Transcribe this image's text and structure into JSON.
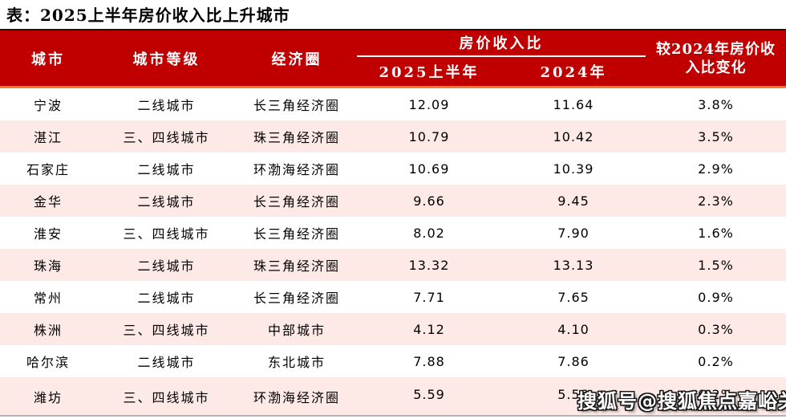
{
  "page": {
    "title": "表：2025上半年房价收入比上升城市",
    "watermark": "搜狐号@搜狐焦点嘉峪关站"
  },
  "colors": {
    "header_bg": "#C00000",
    "header_text": "#FFFFFF",
    "divider_orange": "#ED7D31",
    "top_border_black": "#151515",
    "row_alt_pink": "#FDEAE7",
    "body_text": "#000000"
  },
  "table": {
    "headers": {
      "city": "城市",
      "tier": "城市等级",
      "circle": "经济圈",
      "ratio_group": "房价收入比",
      "ratio_2025h1": "2025上半年",
      "ratio_2024": "2024年",
      "change": "较2024年房价收入比变化"
    },
    "rows": [
      {
        "city": "宁波",
        "tier": "二线城市",
        "circle": "长三角经济圈",
        "h1_2025": "12.09",
        "y2024": "11.64",
        "change": "3.8%"
      },
      {
        "city": "湛江",
        "tier": "三、四线城市",
        "circle": "珠三角经济圈",
        "h1_2025": "10.79",
        "y2024": "10.42",
        "change": "3.5%"
      },
      {
        "city": "石家庄",
        "tier": "二线城市",
        "circle": "环渤海经济圈",
        "h1_2025": "10.69",
        "y2024": "10.39",
        "change": "2.9%"
      },
      {
        "city": "金华",
        "tier": "二线城市",
        "circle": "长三角经济圈",
        "h1_2025": "9.66",
        "y2024": "9.45",
        "change": "2.3%"
      },
      {
        "city": "淮安",
        "tier": "三、四线城市",
        "circle": "长三角经济圈",
        "h1_2025": "8.02",
        "y2024": "7.90",
        "change": "1.6%"
      },
      {
        "city": "珠海",
        "tier": "二线城市",
        "circle": "珠三角经济圈",
        "h1_2025": "13.32",
        "y2024": "13.13",
        "change": "1.5%"
      },
      {
        "city": "常州",
        "tier": "二线城市",
        "circle": "长三角经济圈",
        "h1_2025": "7.71",
        "y2024": "7.65",
        "change": "0.9%"
      },
      {
        "city": "株洲",
        "tier": "三、四线城市",
        "circle": "中部城市",
        "h1_2025": "4.12",
        "y2024": "4.10",
        "change": "0.3%"
      },
      {
        "city": "哈尔滨",
        "tier": "二线城市",
        "circle": "东北城市",
        "h1_2025": "7.88",
        "y2024": "7.86",
        "change": "0.2%"
      },
      {
        "city": "潍坊",
        "tier": "三、四线城市",
        "circle": "环渤海经济圈",
        "h1_2025": "5.59",
        "y2024": "5.58",
        "change": "0.2%"
      }
    ]
  },
  "chart_data": {
    "type": "table",
    "title": "表：2025上半年房价收入比上升城市",
    "columns": [
      "城市",
      "城市等级",
      "经济圈",
      "房价收入比 2025上半年",
      "房价收入比 2024年",
      "较2024年房价收入比变化"
    ],
    "rows": [
      [
        "宁波",
        "二线城市",
        "长三角经济圈",
        12.09,
        11.64,
        "3.8%"
      ],
      [
        "湛江",
        "三、四线城市",
        "珠三角经济圈",
        10.79,
        10.42,
        "3.5%"
      ],
      [
        "石家庄",
        "二线城市",
        "环渤海经济圈",
        10.69,
        10.39,
        "2.9%"
      ],
      [
        "金华",
        "二线城市",
        "长三角经济圈",
        9.66,
        9.45,
        "2.3%"
      ],
      [
        "淮安",
        "三、四线城市",
        "长三角经济圈",
        8.02,
        7.9,
        "1.6%"
      ],
      [
        "珠海",
        "二线城市",
        "珠三角经济圈",
        13.32,
        13.13,
        "1.5%"
      ],
      [
        "常州",
        "二线城市",
        "长三角经济圈",
        7.71,
        7.65,
        "0.9%"
      ],
      [
        "株洲",
        "三、四线城市",
        "中部城市",
        4.12,
        4.1,
        "0.3%"
      ],
      [
        "哈尔滨",
        "二线城市",
        "东北城市",
        7.88,
        7.86,
        "0.2%"
      ],
      [
        "潍坊",
        "三、四线城市",
        "环渤海经济圈",
        5.59,
        5.58,
        "0.2%"
      ]
    ]
  }
}
